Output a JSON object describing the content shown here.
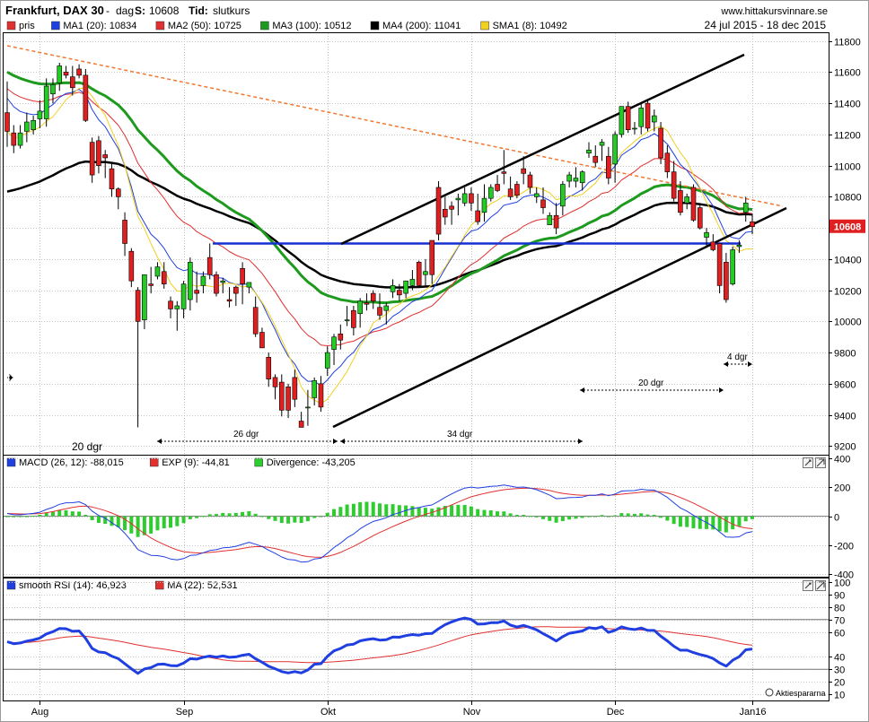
{
  "header": {
    "instrument": "Frankfurt, DAX 30",
    "sep": "-",
    "period": "dag",
    "s_label": "S:",
    "s_value": "10608",
    "tid_label": "Tid:",
    "tid_value": "slutkurs",
    "site": "www.hittakursvinnare.se",
    "date_range": "24 jul 2015 - 18 dec 2015"
  },
  "legend_main": [
    {
      "label": "pris",
      "color": "#e03030"
    },
    {
      "label": "MA1 (20): 10834",
      "color": "#1f3fe0"
    },
    {
      "label": "MA2 (50): 10725",
      "color": "#e03030"
    },
    {
      "label": "MA3 (100): 10512",
      "color": "#1e9a1e"
    },
    {
      "label": "MA4 (200): 11041",
      "color": "#000000"
    },
    {
      "label": "SMA1 (8): 10492",
      "color": "#f0d020"
    }
  ],
  "legend_macd": [
    {
      "label": "MACD (26, 12): -88,015",
      "color": "#1f3fe0"
    },
    {
      "label": "EXP (9): -44,81",
      "color": "#e03030"
    },
    {
      "label": "Divergence: -43,205",
      "color": "#2ecc2e"
    }
  ],
  "legend_rsi": [
    {
      "label": "smooth RSI (14): 46,923",
      "color": "#1f3fe0"
    },
    {
      "label": "MA (22): 52,531",
      "color": "#e03030"
    }
  ],
  "annotations": {
    "d20_left": "20 dgr",
    "d26": "26 dgr",
    "d34": "34 dgr",
    "d20_right": "20 dgr",
    "d4": "4 dgr"
  },
  "price_tag": "10608",
  "brand": "Aktiespararna",
  "x_labels": [
    "Aug",
    "Sep",
    "Okt",
    "Nov",
    "Dec",
    "Jan16"
  ],
  "chart_data": [
    {
      "type": "candlestick",
      "y_ticks": [
        9200,
        9400,
        9600,
        9800,
        10000,
        10200,
        10400,
        10600,
        10800,
        11000,
        11200,
        11400,
        11600,
        11800
      ],
      "ylim": [
        9150,
        11850
      ],
      "resistance_level": 10500,
      "last_price": 10608,
      "candles": [
        [
          11340,
          11540,
          11120,
          11220
        ],
        [
          11210,
          11260,
          11080,
          11130
        ],
        [
          11130,
          11260,
          11110,
          11210
        ],
        [
          11220,
          11340,
          11150,
          11280
        ],
        [
          11230,
          11320,
          11200,
          11290
        ],
        [
          11300,
          11420,
          11240,
          11350
        ],
        [
          11300,
          11560,
          11250,
          11510
        ],
        [
          11460,
          11560,
          11400,
          11520
        ],
        [
          11530,
          11660,
          11480,
          11640
        ],
        [
          11600,
          11640,
          11560,
          11580
        ],
        [
          11570,
          11640,
          11450,
          11500
        ],
        [
          11620,
          11650,
          11560,
          11580
        ],
        [
          11580,
          11620,
          11280,
          11290
        ],
        [
          11150,
          11180,
          10890,
          10940
        ],
        [
          11160,
          11190,
          10950,
          11000
        ],
        [
          11070,
          11100,
          10920,
          11050
        ],
        [
          10980,
          11010,
          10800,
          10850
        ],
        [
          10850,
          10860,
          10720,
          10800
        ],
        [
          10650,
          10700,
          10420,
          10500
        ],
        [
          10450,
          10470,
          10220,
          10260
        ],
        [
          10200,
          10220,
          9320,
          10000
        ],
        [
          10010,
          10300,
          9950,
          10300
        ],
        [
          10240,
          10350,
          10180,
          10230
        ],
        [
          10290,
          10380,
          10270,
          10350
        ],
        [
          10320,
          10380,
          10210,
          10240
        ],
        [
          10130,
          10160,
          10020,
          10080
        ],
        [
          10080,
          10130,
          9940,
          10100
        ],
        [
          10080,
          10260,
          10020,
          10240
        ],
        [
          10140,
          10410,
          10070,
          10380
        ],
        [
          10200,
          10320,
          10120,
          10180
        ],
        [
          10230,
          10320,
          10180,
          10290
        ],
        [
          10410,
          10500,
          10270,
          10300
        ],
        [
          10300,
          10320,
          10160,
          10180
        ],
        [
          10250,
          10280,
          10180,
          10260
        ],
        [
          10140,
          10220,
          10090,
          10130
        ],
        [
          10220,
          10230,
          10100,
          10180
        ],
        [
          10340,
          10380,
          10110,
          10240
        ],
        [
          10220,
          10250,
          10180,
          10250
        ],
        [
          10090,
          10160,
          9900,
          9920
        ],
        [
          9930,
          9960,
          9830,
          9830
        ],
        [
          9770,
          9800,
          9580,
          9630
        ],
        [
          9640,
          9660,
          9500,
          9580
        ],
        [
          9610,
          9660,
          9390,
          9430
        ],
        [
          9580,
          9600,
          9380,
          9430
        ],
        [
          9640,
          9690,
          9450,
          9500
        ],
        [
          9360,
          9420,
          9340,
          9320
        ],
        [
          9450,
          9560,
          9330,
          9450
        ],
        [
          9510,
          9640,
          9460,
          9620
        ],
        [
          9600,
          9650,
          9420,
          9450
        ],
        [
          9700,
          9840,
          9650,
          9800
        ],
        [
          9820,
          9920,
          9720,
          9900
        ],
        [
          9920,
          9980,
          9820,
          9880
        ],
        [
          10010,
          10100,
          9970,
          10010
        ],
        [
          10070,
          10100,
          9910,
          9960
        ],
        [
          10050,
          10150,
          9960,
          10130
        ],
        [
          10120,
          10180,
          10070,
          10110
        ],
        [
          10180,
          10200,
          10080,
          10130
        ],
        [
          10090,
          10180,
          10010,
          10040
        ],
        [
          10070,
          10120,
          9980,
          10100
        ],
        [
          10190,
          10270,
          10150,
          10230
        ],
        [
          10200,
          10240,
          10130,
          10170
        ],
        [
          10180,
          10260,
          10150,
          10260
        ],
        [
          10230,
          10330,
          10200,
          10270
        ],
        [
          10380,
          10390,
          10220,
          10230
        ],
        [
          10300,
          10400,
          10230,
          10320
        ],
        [
          10520,
          10520,
          10240,
          10300
        ],
        [
          10860,
          10900,
          10520,
          10560
        ],
        [
          10720,
          10800,
          10620,
          10670
        ],
        [
          10740,
          10770,
          10620,
          10720
        ],
        [
          10780,
          10820,
          10680,
          10790
        ],
        [
          10760,
          10860,
          10740,
          10820
        ],
        [
          10820,
          10860,
          10710,
          10760
        ],
        [
          10710,
          10820,
          10620,
          10640
        ],
        [
          10700,
          10880,
          10640,
          10790
        ],
        [
          10790,
          10880,
          10770,
          10860
        ],
        [
          10880,
          10940,
          10830,
          10840
        ],
        [
          10960,
          11100,
          10880,
          10950
        ],
        [
          10850,
          10930,
          10780,
          10800
        ],
        [
          10880,
          10900,
          10790,
          10810
        ],
        [
          10980,
          11060,
          10880,
          10950
        ],
        [
          10940,
          10960,
          10820,
          10860
        ],
        [
          10800,
          10860,
          10760,
          10820
        ],
        [
          10780,
          10860,
          10690,
          10730
        ],
        [
          10620,
          10700,
          10620,
          10680
        ],
        [
          10680,
          10760,
          10560,
          10600
        ],
        [
          10740,
          10900,
          10680,
          10880
        ],
        [
          10900,
          10960,
          10860,
          10940
        ],
        [
          10900,
          10990,
          10860,
          10920
        ],
        [
          10890,
          10970,
          10840,
          10960
        ],
        [
          11080,
          11150,
          11050,
          11100
        ],
        [
          11060,
          11130,
          10990,
          11020
        ],
        [
          11130,
          11170,
          11030,
          11150
        ],
        [
          11060,
          11120,
          10880,
          10920
        ],
        [
          11010,
          11220,
          10890,
          11200
        ],
        [
          11200,
          11380,
          11180,
          11380
        ],
        [
          11380,
          11410,
          11210,
          11230
        ],
        [
          11240,
          11280,
          11200,
          11240
        ],
        [
          11250,
          11400,
          11200,
          11370
        ],
        [
          11400,
          11420,
          11220,
          11240
        ],
        [
          11280,
          11360,
          11220,
          11320
        ],
        [
          11240,
          11280,
          11010,
          11050
        ],
        [
          11080,
          11130,
          10920,
          10960
        ],
        [
          10960,
          11030,
          10770,
          10790
        ],
        [
          10840,
          10900,
          10680,
          10700
        ],
        [
          10760,
          10820,
          10720,
          10800
        ],
        [
          10860,
          10880,
          10640,
          10650
        ],
        [
          10730,
          10760,
          10590,
          10600
        ],
        [
          10540,
          10600,
          10480,
          10570
        ],
        [
          10510,
          10560,
          10450,
          10460
        ],
        [
          10500,
          10500,
          10180,
          10230
        ],
        [
          10380,
          10440,
          10120,
          10140
        ],
        [
          10240,
          10480,
          10230,
          10460
        ],
        [
          10480,
          10520,
          10440,
          10490
        ],
        [
          10700,
          10800,
          10640,
          10760
        ],
        [
          10640,
          10690,
          10560,
          10608
        ]
      ]
    },
    {
      "type": "line",
      "name_legend": "MACD",
      "y_ticks": [
        400,
        200,
        0,
        -200,
        -400
      ],
      "ylim": [
        -420,
        420
      ]
    },
    {
      "type": "line",
      "name_legend": "RSI",
      "y_ticks": [
        100,
        90,
        80,
        70,
        60,
        40,
        30,
        20,
        10
      ],
      "ylim": [
        5,
        103
      ],
      "bands": [
        70,
        30
      ]
    }
  ]
}
